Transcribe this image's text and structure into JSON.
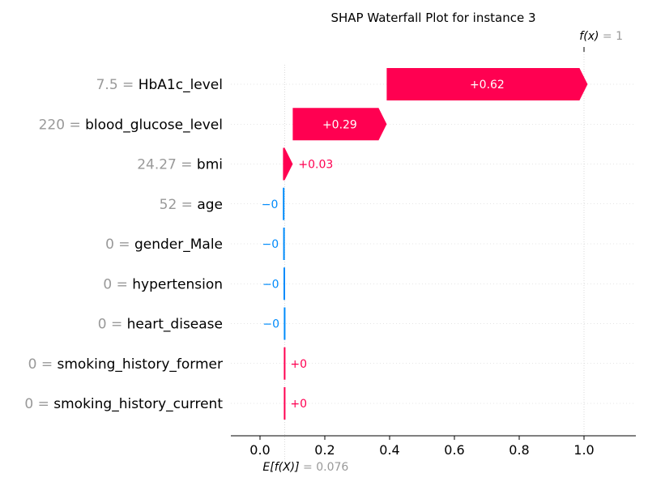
{
  "chart_data": {
    "type": "waterfall",
    "title": "SHAP Waterfall Plot for instance 3",
    "fx_label": "f(x)",
    "fx_value": "1",
    "base_label": "E[f(X)]",
    "base_value_text": "0.076",
    "base_value": 0.076,
    "final_value": 1.0,
    "xlim": [
      -0.09,
      1.16
    ],
    "xticks": [
      0.0,
      0.2,
      0.4,
      0.6,
      0.8,
      1.0
    ],
    "xtick_labels": [
      "0.0",
      "0.2",
      "0.4",
      "0.6",
      "0.8",
      "1.0"
    ],
    "colors": {
      "positive": "#ff0051",
      "negative": "#008bfb",
      "feature_value": "#999999",
      "grid": "#cccccc"
    },
    "features": [
      {
        "value": "7.5",
        "name": "HbA1c_level",
        "shap": 0.62,
        "label": "+0.62"
      },
      {
        "value": "220",
        "name": "blood_glucose_level",
        "shap": 0.29,
        "label": "+0.29"
      },
      {
        "value": "24.27",
        "name": "bmi",
        "shap": 0.03,
        "label": "+0.03"
      },
      {
        "value": "52",
        "name": "age",
        "shap": -0.002,
        "label": "−0"
      },
      {
        "value": "0",
        "name": "gender_Male",
        "shap": -0.001,
        "label": "−0"
      },
      {
        "value": "0",
        "name": "hypertension",
        "shap": -0.001,
        "label": "−0"
      },
      {
        "value": "0",
        "name": "heart_disease",
        "shap": -0.001,
        "label": "−0"
      },
      {
        "value": "0",
        "name": "smoking_history_former",
        "shap": 0.0,
        "label": "+0"
      },
      {
        "value": "0",
        "name": "smoking_history_current",
        "shap": 0.0,
        "label": "+0"
      }
    ]
  }
}
